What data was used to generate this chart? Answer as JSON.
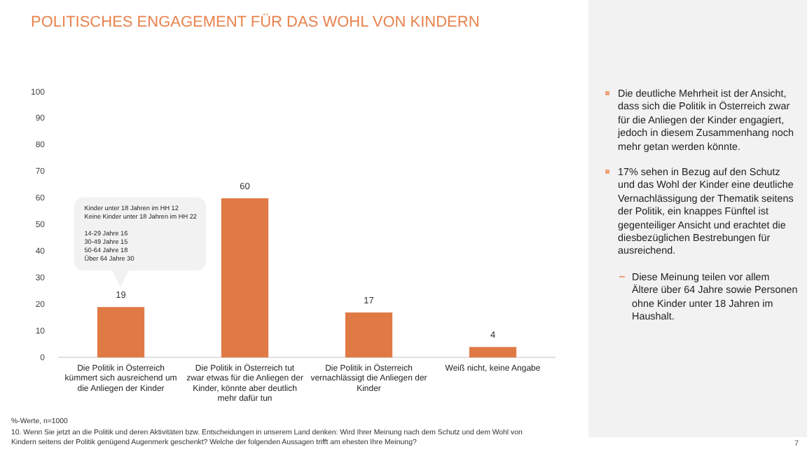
{
  "chart_data": {
    "type": "bar",
    "title": "POLITISCHES ENGAGEMENT FÜR DAS WOHL VON KINDERN",
    "categories": [
      "Die Politik in Österreich kümmert sich ausreichend um die Anliegen der Kinder",
      "Die Politik in Österreich tut zwar etwas für die Anliegen der Kinder, könnte aber deutlich mehr dafür tun",
      "Die Politik in Österreich vernachlässigt die Anliegen der Kinder",
      "Weiß nicht, keine Angabe"
    ],
    "values": [
      19,
      60,
      17,
      4
    ],
    "color": "#e07a45",
    "ylim": [
      0,
      100
    ],
    "yticks": [
      0,
      10,
      20,
      30,
      40,
      50,
      60,
      70,
      80,
      90,
      100
    ],
    "grid": false,
    "legend": false,
    "data_labels": true,
    "annotations": [
      "Kinder unter 18 Jahren im HH 12",
      "Keine Kinder unter 18 Jahren im HH 22",
      "14-29 Jahre 16",
      "30-49 Jahre 15",
      "50-64 Jahre 18",
      "Über 64 Jahre 30",
      "Die deutliche Mehrheit ist der Ansicht, dass sich die Politik in Österreich zwar für die Anliegen der Kinder engagiert, jedoch in diesem Zusammenhang noch mehr getan werden könnte.",
      "17% sehen in Bezug auf den Schutz und das Wohl der Kinder eine deutliche Vernachlässigung der Thematik seitens der Politik, ein knappes Fünftel ist gegenteiliger Ansicht und erachtet die diesbezüglichen Bestrebungen für ausreichend.",
      "Diese Meinung teilen vor allem Ältere über 64 Jahre sowie Personen ohne Kinder unter 18 Jahren im Haushalt.",
      "%-Werte, n=1000",
      "10. Wenn Sie jetzt an die Politik und deren Aktivitäten bzw. Entscheidungen in unserem Land denken: Wird Ihrer Meinung nach dem Schutz und dem Wohl von Kindern seitens der Politik genügend Augenmerk geschenkt? Welche der folgenden Aussagen trifft am ehesten Ihre Meinung?",
      "7"
    ]
  }
}
